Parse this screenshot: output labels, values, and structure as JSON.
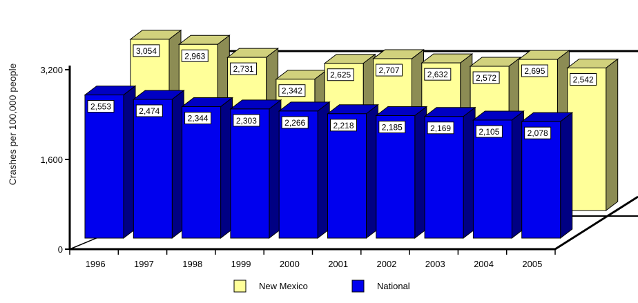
{
  "chart_data": {
    "type": "bar",
    "title": "",
    "xlabel": "",
    "ylabel": "Crashes per 100,000 people",
    "categories": [
      "1996",
      "1997",
      "1998",
      "1999",
      "2000",
      "2001",
      "2002",
      "2003",
      "2004",
      "2005"
    ],
    "series": [
      {
        "name": "New Mexico",
        "color": "#ffff99",
        "values": [
          3054,
          2963,
          2731,
          2342,
          2625,
          2707,
          2632,
          2572,
          2695,
          2542
        ]
      },
      {
        "name": "National",
        "color": "#0000ee",
        "values": [
          2553,
          2474,
          2344,
          2303,
          2266,
          2218,
          2185,
          2169,
          2105,
          2078
        ]
      }
    ],
    "data_labels": {
      "New Mexico": [
        "3,054",
        "2,963",
        "2,731",
        "2,342",
        "2,625",
        "2,707",
        "2,632",
        "2,572",
        "2,695",
        "2,542"
      ],
      "National": [
        "2,553",
        "2,474",
        "2,344",
        "2,303",
        "2,266",
        "2,218",
        "2,185",
        "2,169",
        "2,105",
        "2,078"
      ]
    },
    "yticks": [
      0,
      1600,
      3200
    ],
    "ytick_labels": [
      "0",
      "1,600",
      "3,200"
    ],
    "ylim": [
      0,
      3200
    ],
    "grid": false,
    "style": "3d",
    "legend": "bottom"
  }
}
